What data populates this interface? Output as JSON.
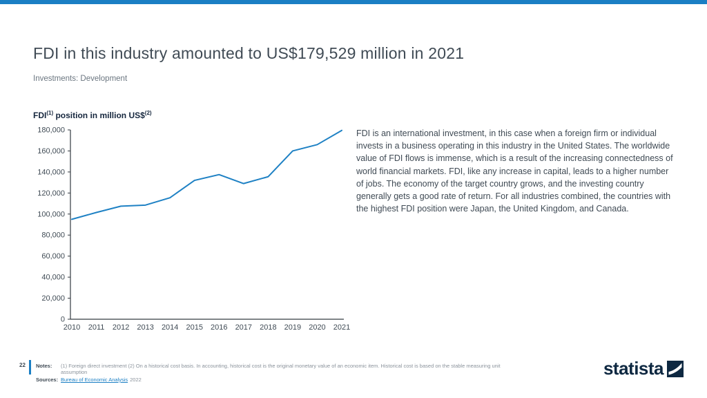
{
  "page": {
    "title": "FDI in this industry amounted to US$179,529 million in 2021",
    "subtitle": "Investments: Development"
  },
  "chart_header": {
    "base1": "FDI",
    "sup1": "(1)",
    "base2": " position in million US$",
    "sup2": "(2)"
  },
  "chart_data": {
    "type": "line",
    "title": "FDI(1) position in million US$(2)",
    "categories": [
      "2010",
      "2011",
      "2012",
      "2013",
      "2014",
      "2015",
      "2016",
      "2017",
      "2018",
      "2019",
      "2020",
      "2021"
    ],
    "values": [
      95000,
      101500,
      107500,
      108500,
      115500,
      132000,
      137500,
      129000,
      135500,
      160000,
      166000,
      179529
    ],
    "xlabel": "",
    "ylabel": "FDI position in million US$",
    "ylim": [
      0,
      180000
    ],
    "ytick_step": 20000,
    "grid": false,
    "legend": "none",
    "line_color": "#1e81c4",
    "axis_color": "#333a40"
  },
  "description": {
    "text": "FDI is an international investment, in this case when a foreign firm or individual invests in a business operating in this industry in the United States. The worldwide value of FDI flows is immense, which is a result of the increasing connectedness of world financial markets. FDI, like any increase in capital, leads to a higher number of jobs. The economy of the target country grows, and the investing country generally gets a good rate of return. For all industries combined, the countries with the highest FDI position were Japan, the United Kingdom, and Canada."
  },
  "footer": {
    "page_number": "22",
    "notes_label": "Notes:",
    "notes_text": "(1) Foreign direct investment (2) On a historical cost basis. In accounting, historical cost is the original monetary value of an economic item. Historical cost is based on the stable measuring unit assumption",
    "sources_label": "Sources:",
    "source_link": "Bureau of Economic Analysis",
    "source_year": "2022",
    "brand": "statista"
  },
  "colors": {
    "accent_blue": "#1b7fc4",
    "line_blue": "#1e81c4",
    "logo_navy": "#0e2841"
  }
}
